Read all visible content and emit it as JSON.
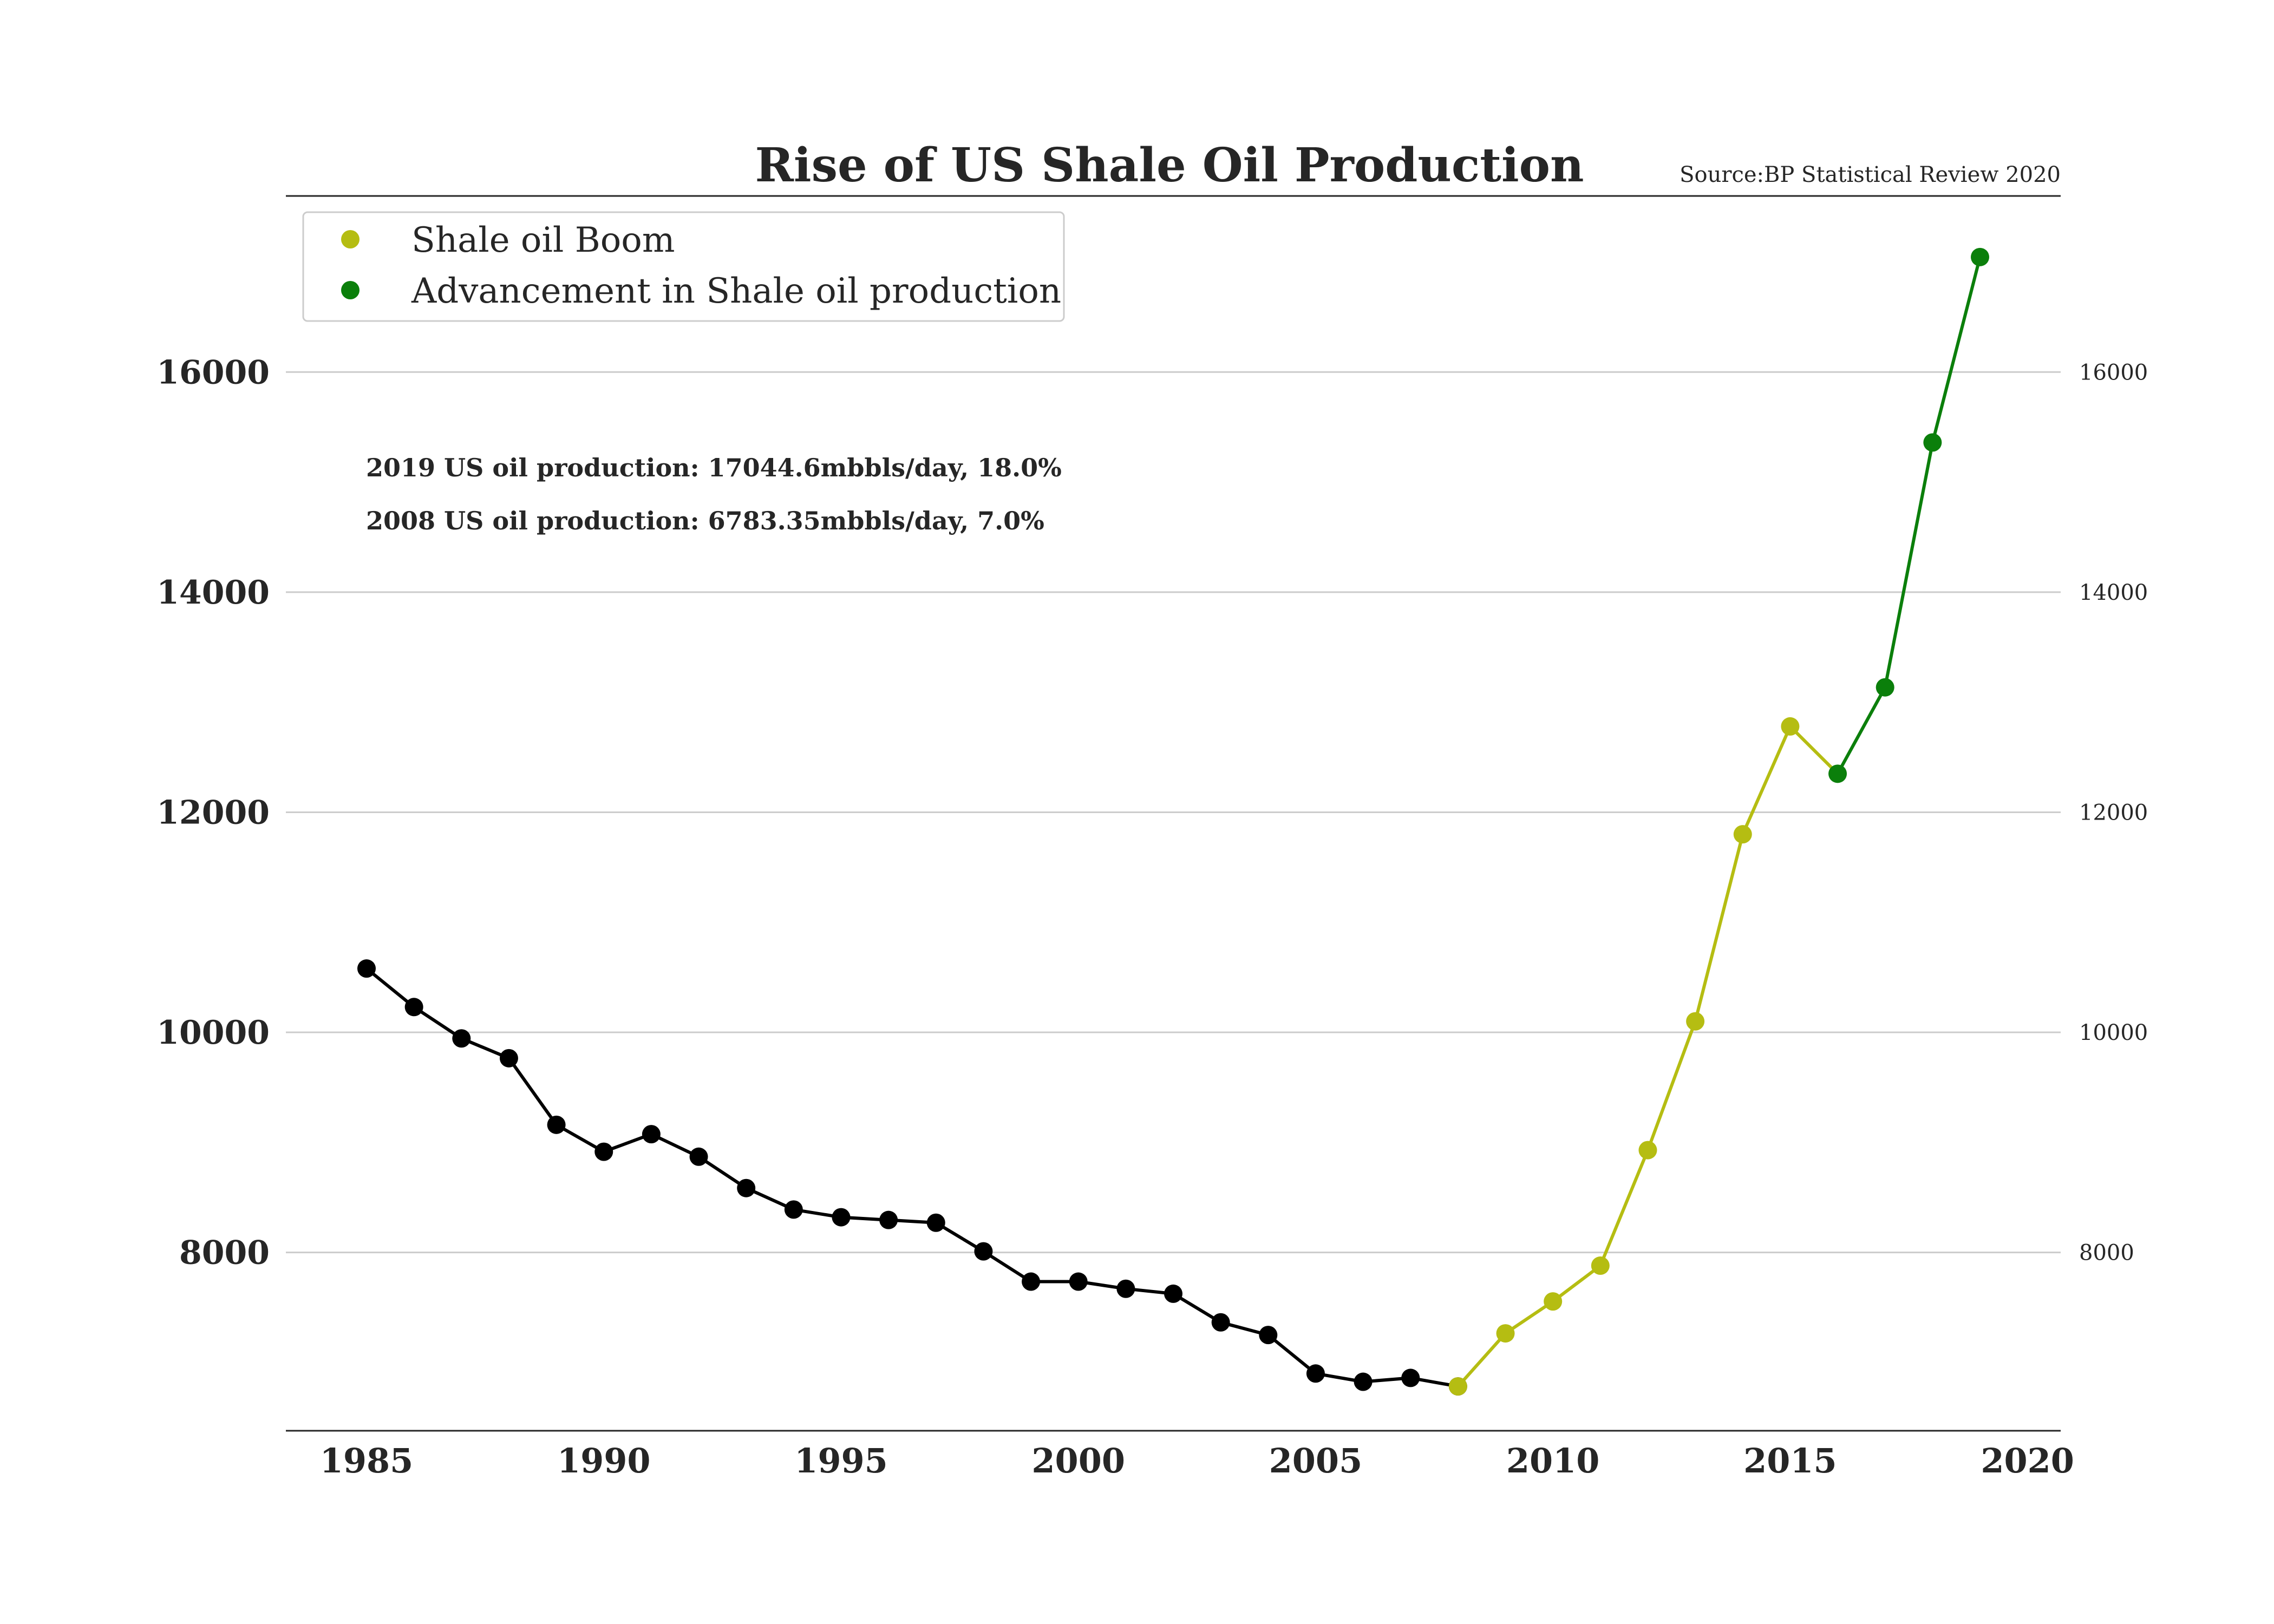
{
  "chart_data": {
    "type": "line",
    "title": "Rise of US Shale Oil Production",
    "source": "Source:BP Statistical Review 2020",
    "xlabel": "",
    "ylabel": "",
    "xlim": [
      1983.3,
      2020.7
    ],
    "ylim": [
      6380,
      17600
    ],
    "grid": true,
    "legend_position": "top-left",
    "x_ticks": [
      "1985",
      "1990",
      "1995",
      "2000",
      "2005",
      "2010",
      "2015",
      "2020"
    ],
    "y_ticks_left": [
      "8000",
      "10000",
      "12000",
      "14000",
      "16000"
    ],
    "y_ticks_right": [
      "8000",
      "10000",
      "12000",
      "14000",
      "16000"
    ],
    "annotations": [
      "2019 US oil production: 17044.6mbbls/day, 18.0%",
      "2008 US oil production: 6783.35mbbls/day, 7.0%"
    ],
    "series": [
      {
        "color": "#000000",
        "x": [
          1985,
          1986,
          1987,
          1988,
          1989,
          1990,
          1991,
          1992,
          1993,
          1994,
          1995,
          1996,
          1997,
          1998,
          1999,
          2000,
          2001,
          2002,
          2003,
          2004,
          2005,
          2006,
          2007,
          2008
        ],
        "y": [
          10580,
          10230,
          9945,
          9765,
          9160,
          8915,
          9075,
          8870,
          8585,
          8390,
          8320,
          8295,
          8270,
          8010,
          7735,
          7735,
          7670,
          7625,
          7365,
          7250,
          6900,
          6825,
          6860,
          6783
        ]
      },
      {
        "name": "Shale oil Boom",
        "color": "#b5bd12",
        "x": [
          2008,
          2009,
          2010,
          2011,
          2012,
          2013,
          2014,
          2015
        ],
        "y": [
          6783,
          7265,
          7555,
          7880,
          8930,
          10100,
          11800,
          12780
        ]
      },
      {
        "name": "Advancement in Shale oil production",
        "color": "#0b7f0b",
        "x": [
          2016,
          2017,
          2018,
          2019
        ],
        "y": [
          12350,
          13135,
          15360,
          17045
        ]
      }
    ],
    "bridge": {
      "color": "#b5bd12",
      "x": [
        2015,
        2016
      ],
      "y": [
        12780,
        12350
      ]
    }
  }
}
